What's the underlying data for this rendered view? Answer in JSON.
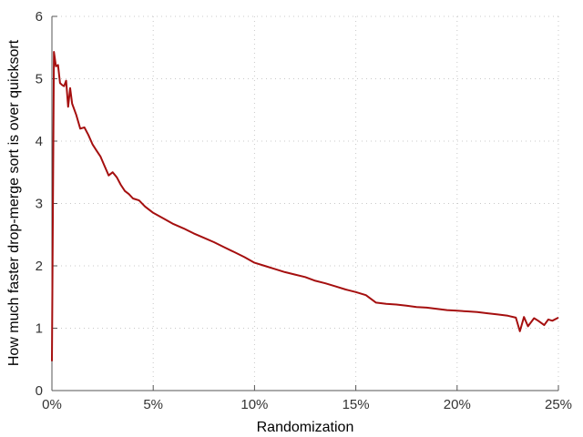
{
  "chart_data": {
    "type": "line",
    "title": "",
    "xlabel": "Randomization",
    "ylabel": "How much faster drop-merge sort is over quicksort",
    "xlim": [
      0,
      25
    ],
    "ylim": [
      0,
      6
    ],
    "x_ticks": [
      0,
      5,
      10,
      15,
      20,
      25
    ],
    "x_tick_labels": [
      "0%",
      "5%",
      "10%",
      "15%",
      "20%",
      "25%"
    ],
    "y_ticks": [
      0,
      1,
      2,
      3,
      4,
      5,
      6
    ],
    "y_tick_labels": [
      "0",
      "1",
      "2",
      "3",
      "4",
      "5",
      "6"
    ],
    "grid": true,
    "series_color": "#a50f0f",
    "series": [
      {
        "x": [
          0,
          0.1,
          0.2,
          0.3,
          0.4,
          0.5,
          0.6,
          0.7,
          0.8,
          0.9,
          1.0,
          1.2,
          1.4,
          1.6,
          1.8,
          2.0,
          2.2,
          2.4,
          2.6,
          2.8,
          3.0,
          3.2,
          3.4,
          3.6,
          3.8,
          4.0,
          4.3,
          4.6,
          5.0,
          5.5,
          6.0,
          6.5,
          7.0,
          7.5,
          8.0,
          8.5,
          9.0,
          9.5,
          10.0,
          10.5,
          11.0,
          11.5,
          12.0,
          12.5,
          13.0,
          13.5,
          14.0,
          14.5,
          15.0,
          15.5,
          16.0,
          16.5,
          17.0,
          17.5,
          18.0,
          18.5,
          19.0,
          19.5,
          20.0,
          20.5,
          21.0,
          21.5,
          22.0,
          22.5,
          22.9,
          23.1,
          23.3,
          23.5,
          23.8,
          24.0,
          24.3,
          24.5,
          24.7,
          25.0
        ],
        "values": [
          0.47,
          5.43,
          5.2,
          5.22,
          4.93,
          4.9,
          4.88,
          4.97,
          4.55,
          4.85,
          4.6,
          4.42,
          4.2,
          4.22,
          4.1,
          3.95,
          3.85,
          3.75,
          3.6,
          3.45,
          3.5,
          3.42,
          3.3,
          3.2,
          3.15,
          3.08,
          3.05,
          2.95,
          2.85,
          2.76,
          2.67,
          2.6,
          2.52,
          2.45,
          2.38,
          2.3,
          2.22,
          2.14,
          2.05,
          2.0,
          1.95,
          1.9,
          1.86,
          1.82,
          1.76,
          1.72,
          1.67,
          1.62,
          1.58,
          1.53,
          1.41,
          1.39,
          1.38,
          1.36,
          1.34,
          1.33,
          1.31,
          1.29,
          1.28,
          1.27,
          1.26,
          1.24,
          1.22,
          1.2,
          1.17,
          0.95,
          1.18,
          1.03,
          1.16,
          1.12,
          1.05,
          1.14,
          1.12,
          1.17
        ]
      }
    ]
  }
}
